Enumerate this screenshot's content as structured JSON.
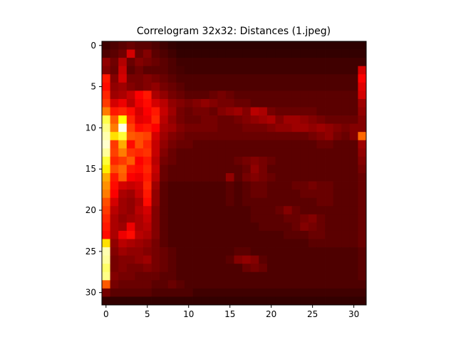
{
  "chart_data": {
    "type": "heatmap",
    "title": "Correlogram 32x32: Distances (1.jpeg)",
    "xlabel": "",
    "ylabel": "",
    "rows": 32,
    "cols": 32,
    "xlim": [
      -0.5,
      31.5
    ],
    "ylim": [
      31.5,
      -0.5
    ],
    "x_ticks": [
      0,
      5,
      10,
      15,
      20,
      25,
      30
    ],
    "y_ticks": [
      0,
      5,
      10,
      15,
      20,
      25,
      30
    ],
    "colormap": "hot",
    "value_range": [
      0,
      1
    ],
    "values": [
      [
        0.08,
        0.1,
        0.12,
        0.14,
        0.12,
        0.12,
        0.1,
        0.08,
        0.06,
        0.05,
        0.05,
        0.05,
        0.05,
        0.05,
        0.05,
        0.05,
        0.05,
        0.05,
        0.05,
        0.05,
        0.05,
        0.05,
        0.05,
        0.05,
        0.05,
        0.05,
        0.05,
        0.05,
        0.05,
        0.05,
        0.05,
        0.05
      ],
      [
        0.1,
        0.12,
        0.15,
        0.3,
        0.14,
        0.18,
        0.12,
        0.1,
        0.08,
        0.06,
        0.06,
        0.06,
        0.06,
        0.06,
        0.06,
        0.06,
        0.06,
        0.06,
        0.06,
        0.06,
        0.06,
        0.06,
        0.06,
        0.06,
        0.06,
        0.06,
        0.06,
        0.06,
        0.06,
        0.06,
        0.06,
        0.06
      ],
      [
        0.2,
        0.15,
        0.25,
        0.14,
        0.18,
        0.16,
        0.14,
        0.12,
        0.1,
        0.08,
        0.08,
        0.08,
        0.08,
        0.08,
        0.08,
        0.08,
        0.08,
        0.08,
        0.08,
        0.08,
        0.08,
        0.08,
        0.08,
        0.08,
        0.08,
        0.08,
        0.08,
        0.08,
        0.08,
        0.08,
        0.08,
        0.08
      ],
      [
        0.18,
        0.14,
        0.28,
        0.12,
        0.15,
        0.12,
        0.12,
        0.12,
        0.1,
        0.09,
        0.08,
        0.08,
        0.08,
        0.08,
        0.08,
        0.08,
        0.08,
        0.08,
        0.08,
        0.08,
        0.08,
        0.08,
        0.08,
        0.08,
        0.08,
        0.08,
        0.08,
        0.08,
        0.08,
        0.08,
        0.08,
        0.3
      ],
      [
        0.4,
        0.18,
        0.3,
        0.16,
        0.16,
        0.18,
        0.16,
        0.14,
        0.12,
        0.1,
        0.1,
        0.1,
        0.1,
        0.1,
        0.1,
        0.1,
        0.1,
        0.1,
        0.1,
        0.1,
        0.1,
        0.1,
        0.1,
        0.1,
        0.1,
        0.1,
        0.1,
        0.1,
        0.1,
        0.1,
        0.1,
        0.36
      ],
      [
        0.38,
        0.2,
        0.22,
        0.18,
        0.16,
        0.18,
        0.2,
        0.16,
        0.14,
        0.12,
        0.1,
        0.1,
        0.1,
        0.1,
        0.1,
        0.1,
        0.1,
        0.1,
        0.1,
        0.1,
        0.1,
        0.1,
        0.1,
        0.1,
        0.1,
        0.1,
        0.1,
        0.1,
        0.1,
        0.1,
        0.1,
        0.32
      ],
      [
        0.42,
        0.22,
        0.24,
        0.28,
        0.36,
        0.4,
        0.24,
        0.2,
        0.16,
        0.14,
        0.12,
        0.12,
        0.12,
        0.14,
        0.16,
        0.14,
        0.12,
        0.12,
        0.12,
        0.12,
        0.12,
        0.12,
        0.12,
        0.12,
        0.12,
        0.12,
        0.12,
        0.12,
        0.12,
        0.12,
        0.12,
        0.3
      ],
      [
        0.45,
        0.3,
        0.34,
        0.26,
        0.34,
        0.38,
        0.3,
        0.26,
        0.2,
        0.18,
        0.16,
        0.18,
        0.2,
        0.18,
        0.16,
        0.16,
        0.14,
        0.14,
        0.12,
        0.12,
        0.12,
        0.12,
        0.12,
        0.12,
        0.12,
        0.12,
        0.12,
        0.12,
        0.12,
        0.12,
        0.12,
        0.22
      ],
      [
        0.55,
        0.4,
        0.42,
        0.38,
        0.3,
        0.36,
        0.4,
        0.28,
        0.22,
        0.16,
        0.14,
        0.16,
        0.16,
        0.14,
        0.18,
        0.2,
        0.22,
        0.18,
        0.26,
        0.24,
        0.16,
        0.14,
        0.14,
        0.14,
        0.14,
        0.14,
        0.12,
        0.12,
        0.12,
        0.12,
        0.12,
        0.2
      ],
      [
        0.82,
        0.5,
        0.75,
        0.42,
        0.32,
        0.34,
        0.42,
        0.26,
        0.2,
        0.16,
        0.14,
        0.14,
        0.16,
        0.16,
        0.14,
        0.14,
        0.16,
        0.18,
        0.2,
        0.22,
        0.24,
        0.18,
        0.22,
        0.22,
        0.2,
        0.18,
        0.16,
        0.14,
        0.14,
        0.14,
        0.14,
        0.18
      ],
      [
        0.88,
        0.55,
        0.98,
        0.46,
        0.38,
        0.4,
        0.36,
        0.24,
        0.22,
        0.18,
        0.16,
        0.16,
        0.16,
        0.16,
        0.14,
        0.14,
        0.14,
        0.16,
        0.16,
        0.16,
        0.18,
        0.2,
        0.2,
        0.22,
        0.22,
        0.2,
        0.22,
        0.2,
        0.18,
        0.16,
        0.18,
        0.18
      ],
      [
        0.92,
        0.7,
        0.8,
        0.5,
        0.48,
        0.46,
        0.3,
        0.22,
        0.18,
        0.16,
        0.14,
        0.14,
        0.14,
        0.14,
        0.14,
        0.14,
        0.14,
        0.14,
        0.14,
        0.14,
        0.14,
        0.14,
        0.14,
        0.14,
        0.14,
        0.16,
        0.18,
        0.2,
        0.16,
        0.14,
        0.18,
        0.52
      ],
      [
        0.95,
        0.45,
        0.62,
        0.38,
        0.48,
        0.42,
        0.28,
        0.2,
        0.16,
        0.14,
        0.14,
        0.12,
        0.12,
        0.12,
        0.12,
        0.12,
        0.12,
        0.12,
        0.12,
        0.12,
        0.12,
        0.12,
        0.12,
        0.12,
        0.12,
        0.12,
        0.14,
        0.14,
        0.12,
        0.12,
        0.12,
        0.22
      ],
      [
        0.9,
        0.46,
        0.55,
        0.44,
        0.42,
        0.44,
        0.28,
        0.18,
        0.14,
        0.12,
        0.12,
        0.12,
        0.12,
        0.12,
        0.12,
        0.12,
        0.12,
        0.12,
        0.12,
        0.12,
        0.12,
        0.12,
        0.12,
        0.12,
        0.12,
        0.12,
        0.12,
        0.12,
        0.12,
        0.12,
        0.12,
        0.2
      ],
      [
        0.8,
        0.42,
        0.45,
        0.5,
        0.36,
        0.4,
        0.26,
        0.16,
        0.14,
        0.12,
        0.12,
        0.12,
        0.12,
        0.12,
        0.12,
        0.12,
        0.14,
        0.16,
        0.18,
        0.16,
        0.14,
        0.12,
        0.12,
        0.12,
        0.12,
        0.12,
        0.12,
        0.12,
        0.12,
        0.12,
        0.12,
        0.18
      ],
      [
        0.72,
        0.48,
        0.52,
        0.4,
        0.38,
        0.42,
        0.28,
        0.14,
        0.12,
        0.12,
        0.12,
        0.12,
        0.12,
        0.12,
        0.12,
        0.12,
        0.12,
        0.14,
        0.2,
        0.16,
        0.12,
        0.12,
        0.12,
        0.12,
        0.12,
        0.12,
        0.12,
        0.12,
        0.12,
        0.12,
        0.12,
        0.16
      ],
      [
        0.62,
        0.4,
        0.5,
        0.36,
        0.34,
        0.4,
        0.26,
        0.14,
        0.12,
        0.12,
        0.12,
        0.12,
        0.12,
        0.12,
        0.12,
        0.2,
        0.12,
        0.16,
        0.18,
        0.16,
        0.14,
        0.12,
        0.12,
        0.12,
        0.12,
        0.12,
        0.12,
        0.12,
        0.12,
        0.12,
        0.12,
        0.14
      ],
      [
        0.58,
        0.38,
        0.3,
        0.28,
        0.3,
        0.42,
        0.22,
        0.12,
        0.1,
        0.1,
        0.1,
        0.1,
        0.1,
        0.1,
        0.1,
        0.12,
        0.1,
        0.12,
        0.14,
        0.14,
        0.12,
        0.12,
        0.12,
        0.14,
        0.14,
        0.16,
        0.14,
        0.14,
        0.12,
        0.12,
        0.12,
        0.14
      ],
      [
        0.55,
        0.36,
        0.24,
        0.22,
        0.28,
        0.4,
        0.2,
        0.12,
        0.1,
        0.1,
        0.1,
        0.1,
        0.1,
        0.1,
        0.1,
        0.12,
        0.1,
        0.12,
        0.14,
        0.14,
        0.12,
        0.12,
        0.12,
        0.12,
        0.14,
        0.14,
        0.14,
        0.14,
        0.12,
        0.12,
        0.12,
        0.14
      ],
      [
        0.48,
        0.3,
        0.22,
        0.2,
        0.24,
        0.38,
        0.2,
        0.12,
        0.1,
        0.1,
        0.1,
        0.1,
        0.1,
        0.1,
        0.1,
        0.12,
        0.1,
        0.12,
        0.12,
        0.12,
        0.12,
        0.12,
        0.12,
        0.12,
        0.12,
        0.12,
        0.14,
        0.14,
        0.12,
        0.12,
        0.12,
        0.14
      ],
      [
        0.45,
        0.26,
        0.22,
        0.2,
        0.26,
        0.3,
        0.18,
        0.12,
        0.1,
        0.1,
        0.1,
        0.1,
        0.1,
        0.1,
        0.1,
        0.1,
        0.1,
        0.1,
        0.12,
        0.12,
        0.12,
        0.14,
        0.18,
        0.14,
        0.12,
        0.12,
        0.12,
        0.12,
        0.12,
        0.12,
        0.12,
        0.14
      ],
      [
        0.42,
        0.24,
        0.2,
        0.22,
        0.24,
        0.28,
        0.18,
        0.12,
        0.1,
        0.1,
        0.1,
        0.1,
        0.1,
        0.1,
        0.1,
        0.1,
        0.1,
        0.1,
        0.12,
        0.12,
        0.12,
        0.12,
        0.14,
        0.14,
        0.16,
        0.18,
        0.14,
        0.12,
        0.12,
        0.12,
        0.12,
        0.14
      ],
      [
        0.4,
        0.24,
        0.22,
        0.34,
        0.24,
        0.26,
        0.18,
        0.12,
        0.1,
        0.1,
        0.1,
        0.1,
        0.1,
        0.1,
        0.1,
        0.1,
        0.1,
        0.1,
        0.1,
        0.12,
        0.12,
        0.12,
        0.12,
        0.14,
        0.18,
        0.16,
        0.14,
        0.12,
        0.12,
        0.12,
        0.12,
        0.14
      ],
      [
        0.38,
        0.24,
        0.34,
        0.38,
        0.26,
        0.24,
        0.18,
        0.12,
        0.1,
        0.1,
        0.1,
        0.1,
        0.1,
        0.1,
        0.1,
        0.1,
        0.1,
        0.1,
        0.1,
        0.1,
        0.1,
        0.1,
        0.12,
        0.12,
        0.12,
        0.14,
        0.14,
        0.12,
        0.12,
        0.12,
        0.12,
        0.14
      ],
      [
        0.7,
        0.2,
        0.26,
        0.24,
        0.22,
        0.2,
        0.16,
        0.12,
        0.1,
        0.1,
        0.1,
        0.1,
        0.1,
        0.1,
        0.1,
        0.1,
        0.1,
        0.1,
        0.1,
        0.1,
        0.1,
        0.1,
        0.1,
        0.1,
        0.1,
        0.12,
        0.12,
        0.12,
        0.12,
        0.12,
        0.12,
        0.14
      ],
      [
        0.92,
        0.18,
        0.22,
        0.2,
        0.2,
        0.18,
        0.16,
        0.14,
        0.12,
        0.1,
        0.1,
        0.1,
        0.1,
        0.1,
        0.1,
        0.1,
        0.12,
        0.12,
        0.1,
        0.1,
        0.1,
        0.1,
        0.1,
        0.1,
        0.1,
        0.1,
        0.1,
        0.1,
        0.1,
        0.1,
        0.1,
        0.12
      ],
      [
        0.9,
        0.16,
        0.18,
        0.18,
        0.2,
        0.22,
        0.16,
        0.14,
        0.12,
        0.1,
        0.1,
        0.1,
        0.1,
        0.1,
        0.1,
        0.12,
        0.18,
        0.2,
        0.18,
        0.12,
        0.1,
        0.1,
        0.1,
        0.1,
        0.1,
        0.1,
        0.1,
        0.1,
        0.1,
        0.1,
        0.1,
        0.12
      ],
      [
        0.85,
        0.16,
        0.18,
        0.16,
        0.16,
        0.18,
        0.16,
        0.14,
        0.12,
        0.1,
        0.1,
        0.1,
        0.1,
        0.1,
        0.1,
        0.1,
        0.1,
        0.14,
        0.16,
        0.14,
        0.1,
        0.1,
        0.1,
        0.1,
        0.1,
        0.1,
        0.1,
        0.1,
        0.1,
        0.1,
        0.1,
        0.12
      ],
      [
        0.88,
        0.18,
        0.16,
        0.16,
        0.14,
        0.14,
        0.14,
        0.12,
        0.12,
        0.1,
        0.1,
        0.1,
        0.1,
        0.1,
        0.1,
        0.1,
        0.1,
        0.1,
        0.1,
        0.1,
        0.1,
        0.1,
        0.1,
        0.1,
        0.1,
        0.1,
        0.1,
        0.1,
        0.1,
        0.1,
        0.1,
        0.12
      ],
      [
        0.5,
        0.16,
        0.14,
        0.14,
        0.14,
        0.14,
        0.12,
        0.12,
        0.14,
        0.12,
        0.1,
        0.1,
        0.1,
        0.1,
        0.1,
        0.1,
        0.1,
        0.1,
        0.1,
        0.1,
        0.1,
        0.1,
        0.1,
        0.1,
        0.1,
        0.1,
        0.1,
        0.1,
        0.1,
        0.1,
        0.1,
        0.1
      ],
      [
        0.16,
        0.12,
        0.12,
        0.12,
        0.12,
        0.12,
        0.1,
        0.1,
        0.1,
        0.1,
        0.1,
        0.08,
        0.08,
        0.08,
        0.08,
        0.08,
        0.08,
        0.08,
        0.08,
        0.08,
        0.08,
        0.08,
        0.08,
        0.08,
        0.08,
        0.08,
        0.08,
        0.08,
        0.08,
        0.08,
        0.08,
        0.08
      ],
      [
        0.06,
        0.06,
        0.06,
        0.06,
        0.06,
        0.06,
        0.06,
        0.06,
        0.06,
        0.06,
        0.06,
        0.06,
        0.06,
        0.06,
        0.06,
        0.06,
        0.06,
        0.06,
        0.06,
        0.06,
        0.06,
        0.06,
        0.06,
        0.06,
        0.06,
        0.06,
        0.06,
        0.06,
        0.06,
        0.06,
        0.06,
        0.06
      ]
    ]
  }
}
